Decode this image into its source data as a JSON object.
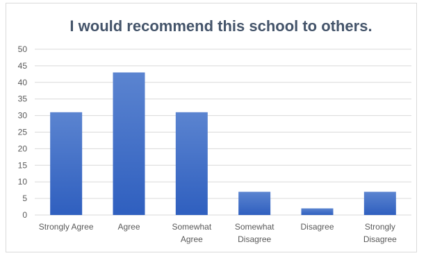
{
  "chart_data": {
    "type": "bar",
    "title": "I would recommend this school to others.",
    "categories": [
      [
        "Strongly Agree"
      ],
      [
        "Agree"
      ],
      [
        "Somewhat",
        "Agree"
      ],
      [
        "Somewhat",
        "Disagree"
      ],
      [
        "Disagree"
      ],
      [
        "Strongly",
        "Disagree"
      ]
    ],
    "values": [
      31,
      43,
      31,
      7,
      2,
      7
    ],
    "ylim": [
      0,
      50
    ],
    "yticks": [
      "0",
      "5",
      "10",
      "15",
      "20",
      "25",
      "30",
      "35",
      "40",
      "45",
      "50"
    ],
    "grid": true,
    "legend": "none",
    "colors": {
      "bar_top": "#5b84d0",
      "bar_bottom": "#2f5fbf",
      "grid": "#d9d9d9",
      "title": "#44546a",
      "text": "#595959"
    }
  }
}
